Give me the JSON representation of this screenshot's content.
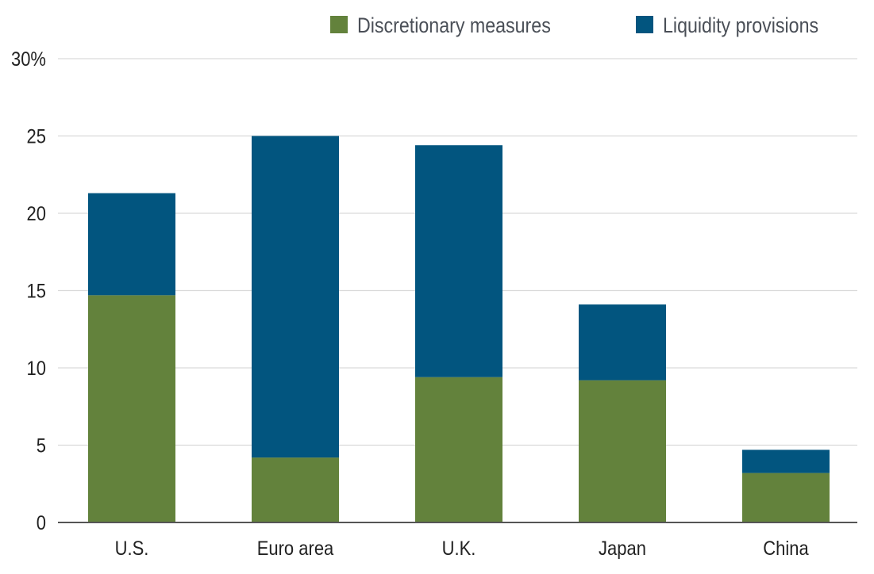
{
  "chart_data": {
    "type": "bar",
    "stacked": true,
    "title": "",
    "xlabel": "",
    "ylabel": "",
    "categories": [
      "U.S.",
      "Euro area",
      "U.K.",
      "Japan",
      "China"
    ],
    "series": [
      {
        "name": "Discretionary measures",
        "color": "#63823c",
        "values": [
          14.7,
          4.2,
          9.4,
          9.2,
          3.2
        ]
      },
      {
        "name": "Liquidity provisions",
        "color": "#02557f",
        "values": [
          6.6,
          20.8,
          15.0,
          4.9,
          1.5
        ]
      }
    ],
    "ylim": [
      0,
      30
    ],
    "yticks": [
      0,
      5,
      10,
      15,
      20,
      25,
      30
    ],
    "ytick_labels": [
      "0",
      "5",
      "10",
      "15",
      "20",
      "25",
      "30%"
    ],
    "grid": true,
    "legend_position": "top-right",
    "colors": {
      "grid": "#d9d9d9",
      "axis": "#555555"
    }
  }
}
